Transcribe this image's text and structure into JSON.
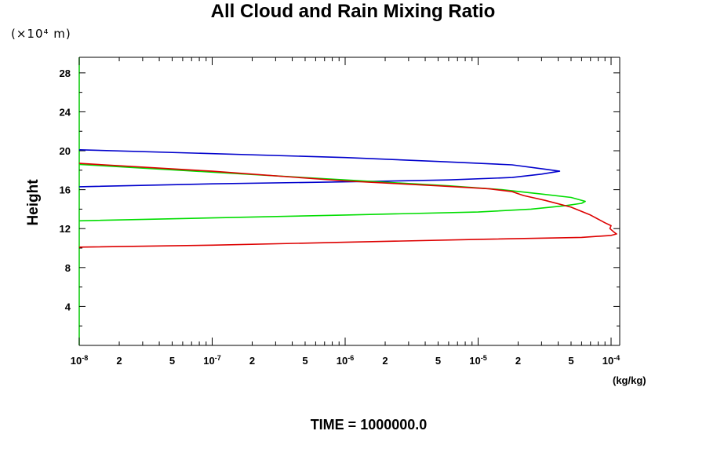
{
  "chart_data": {
    "type": "line",
    "title": "All Cloud and Rain Mixing Ratio",
    "y_unit_label": "(×10⁴ m)",
    "ylabel": "Height",
    "xlabel": "(kg/kg)",
    "footer": "TIME = 1000000.0",
    "x_scale": "log",
    "xlim": [
      1e-08,
      0.00012
    ],
    "ylim": [
      0,
      29.6
    ],
    "y_ticks": [
      4,
      8,
      12,
      16,
      20,
      24,
      28
    ],
    "y_tick_labels": [
      "4",
      "8",
      "12",
      "16",
      "20",
      "24",
      "28"
    ],
    "x_major_ticks": [
      {
        "value": 1e-08,
        "base": "10",
        "exp": "-8"
      },
      {
        "value": 1e-07,
        "base": "10",
        "exp": "-7"
      },
      {
        "value": 1e-06,
        "base": "10",
        "exp": "-6"
      },
      {
        "value": 1e-05,
        "base": "10",
        "exp": "-5"
      },
      {
        "value": 0.0001,
        "base": "10",
        "exp": "-4"
      }
    ],
    "x_minor_labels": [
      "2",
      "5"
    ],
    "colors": {
      "axis": "#00c800",
      "frame": "#000000"
    },
    "series": [
      {
        "color": "#0000cc",
        "points": [
          [
            1e-08,
            20.1
          ],
          [
            1e-07,
            19.7
          ],
          [
            1e-06,
            19.3
          ],
          [
            5e-06,
            18.9
          ],
          [
            1.8e-05,
            18.55
          ],
          [
            3.2e-05,
            18.1
          ],
          [
            4.1e-05,
            17.9
          ],
          [
            3e-05,
            17.6
          ],
          [
            1.8e-05,
            17.25
          ],
          [
            6e-06,
            17.0
          ],
          [
            1.6e-06,
            16.85
          ],
          [
            1e-07,
            16.6
          ],
          [
            1e-08,
            16.3
          ]
        ]
      },
      {
        "color": "#00dd00",
        "points": [
          [
            1e-08,
            18.6
          ],
          [
            1e-07,
            17.8
          ],
          [
            1e-06,
            17.0
          ],
          [
            6e-06,
            16.4
          ],
          [
            1.5e-05,
            16.0
          ],
          [
            3e-05,
            15.55
          ],
          [
            5e-05,
            15.2
          ],
          [
            6.4e-05,
            14.8
          ],
          [
            6e-05,
            14.6
          ],
          [
            4.5e-05,
            14.35
          ],
          [
            2.5e-05,
            14.0
          ],
          [
            1e-05,
            13.7
          ],
          [
            1e-06,
            13.4
          ],
          [
            1e-07,
            13.1
          ],
          [
            1e-08,
            12.8
          ]
        ]
      },
      {
        "color": "#dd0000",
        "points": [
          [
            1e-08,
            18.7
          ],
          [
            1e-07,
            17.9
          ],
          [
            1e-06,
            16.9
          ],
          [
            5e-06,
            16.4
          ],
          [
            1.2e-05,
            16.1
          ],
          [
            1.8e-05,
            15.8
          ],
          [
            2.2e-05,
            15.4
          ],
          [
            3.2e-05,
            14.9
          ],
          [
            5e-05,
            14.2
          ],
          [
            7e-05,
            13.4
          ],
          [
            9e-05,
            12.6
          ],
          [
            0.0001,
            12.3
          ],
          [
            9.8e-05,
            12.0
          ],
          [
            0.000106,
            11.6
          ],
          [
            0.00011,
            11.45
          ],
          [
            0.0001,
            11.3
          ],
          [
            6e-05,
            11.1
          ],
          [
            1e-05,
            10.9
          ],
          [
            1e-06,
            10.6
          ],
          [
            1e-07,
            10.3
          ],
          [
            1e-08,
            10.1
          ]
        ]
      }
    ]
  }
}
